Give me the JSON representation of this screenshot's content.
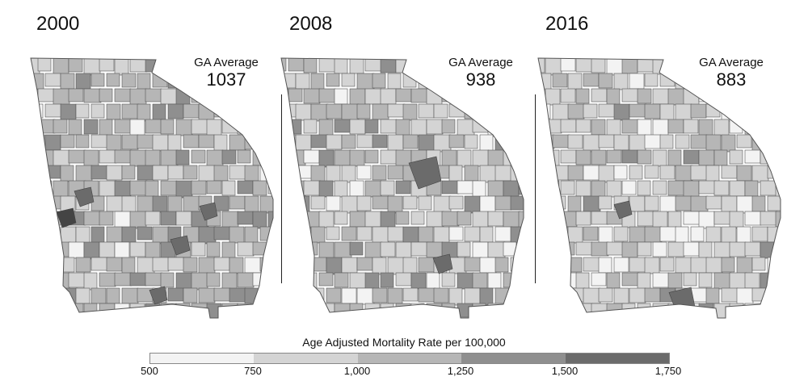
{
  "panels": [
    {
      "year": "2000",
      "avg_label": "GA Average",
      "avg_value": "1037"
    },
    {
      "year": "2008",
      "avg_label": "GA Average",
      "avg_value": "938"
    },
    {
      "year": "2016",
      "avg_label": "GA Average",
      "avg_value": "883"
    }
  ],
  "legend": {
    "title": "Age Adjusted Mortality Rate per 100,000",
    "ticks": [
      "500",
      "750",
      "1,000",
      "1,250",
      "1,500",
      "1,750"
    ],
    "colors": [
      "#f3f3f3",
      "#d4d4d4",
      "#b6b6b6",
      "#8f8f8f",
      "#6b6b6b",
      "#444444"
    ]
  }
}
